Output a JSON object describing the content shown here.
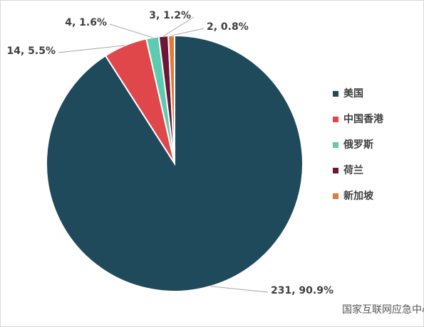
{
  "chart_data": {
    "type": "pie",
    "categories": [
      "美国",
      "中国香港",
      "俄罗斯",
      "荷兰",
      "新加坡"
    ],
    "values": [
      231,
      14,
      4,
      3,
      2
    ],
    "value_labels": [
      "231, 90.9%",
      "14, 5.5%",
      "4, 1.6%",
      "3, 1.2%",
      "2, 0.8%"
    ],
    "colors": [
      "#1f4a5c",
      "#e0474a",
      "#5ecbb0",
      "#6b1838",
      "#e07a3a"
    ],
    "legend": "right"
  },
  "watermark": "国家互联网应急中心CNCERT"
}
